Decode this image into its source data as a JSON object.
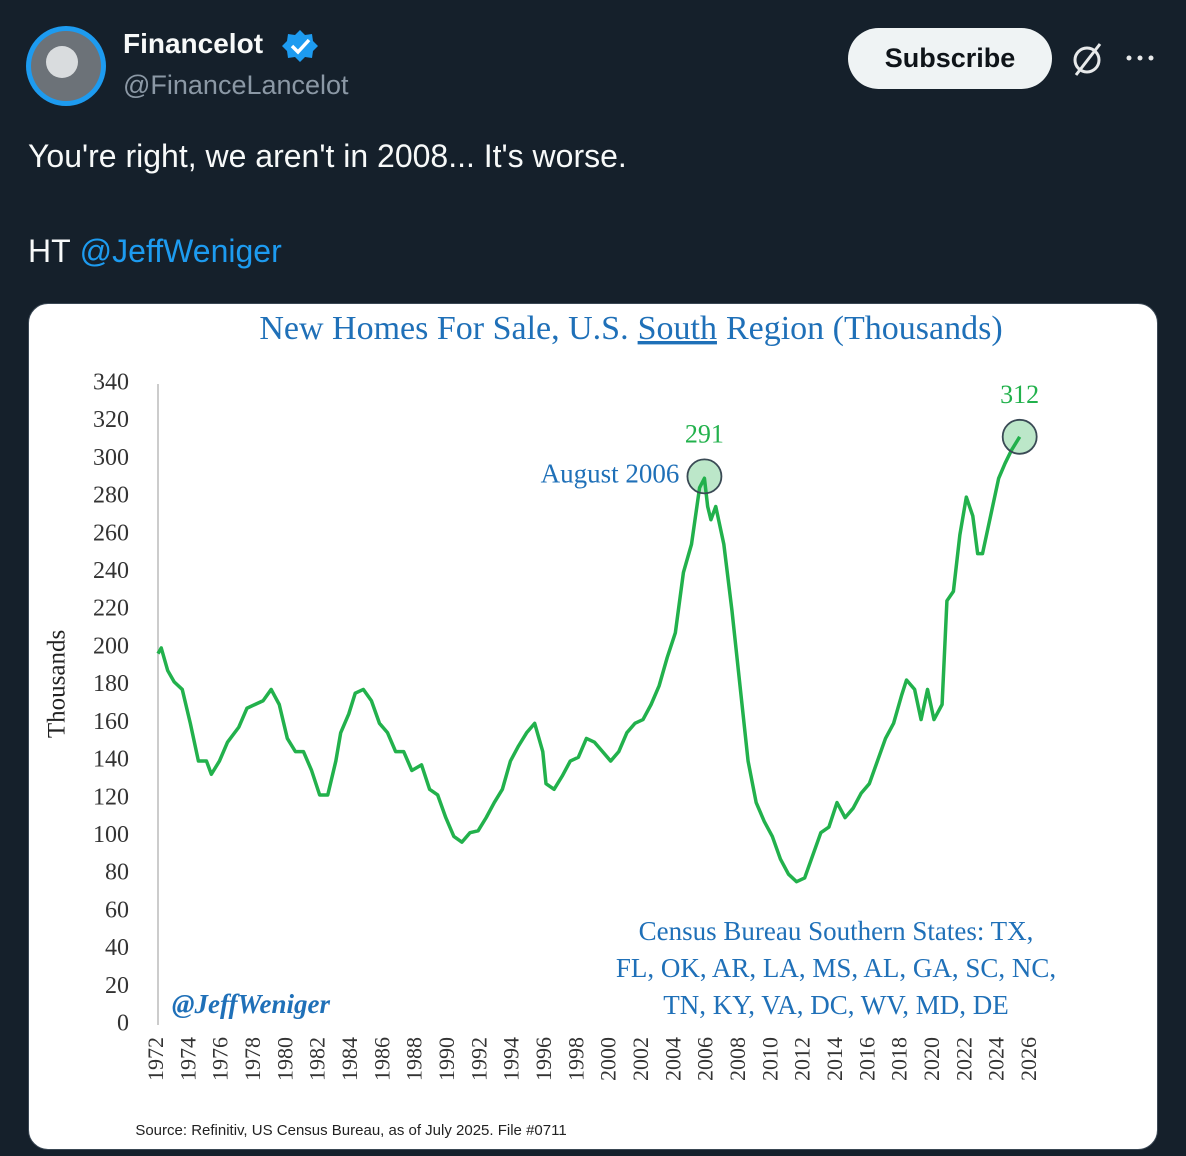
{
  "tweet": {
    "name": "Financelot",
    "handle": "@FinanceLancelot",
    "button": "Subscribe",
    "text": "You're right, we aren't in 2008... It's worse.",
    "ht": "HT",
    "mention": "@JeffWeniger"
  },
  "chart_data": {
    "type": "line",
    "title": [
      "New Homes For Sale, U.S.",
      "South",
      "Region (Thousands)"
    ],
    "ylabel": "Thousands",
    "color": "#22b14c",
    "x": [
      1972.0,
      1972.2,
      1972.6,
      1973.0,
      1973.5,
      1974.0,
      1974.5,
      1975.0,
      1975.3,
      1975.8,
      1976.3,
      1977.0,
      1977.5,
      1978.0,
      1978.5,
      1979.0,
      1979.5,
      1980.0,
      1980.5,
      1981.0,
      1981.5,
      1982.0,
      1982.5,
      1983.0,
      1983.3,
      1983.8,
      1984.2,
      1984.7,
      1985.2,
      1985.7,
      1986.2,
      1986.7,
      1987.2,
      1987.7,
      1988.3,
      1988.8,
      1989.3,
      1989.8,
      1990.3,
      1990.8,
      1991.3,
      1991.8,
      1992.3,
      1992.8,
      1993.3,
      1993.8,
      1994.3,
      1994.8,
      1995.3,
      1995.8,
      1996.0,
      1996.5,
      1997.0,
      1997.5,
      1998.0,
      1998.5,
      1999.0,
      1999.5,
      2000.0,
      2000.5,
      2001.0,
      2001.5,
      2002.0,
      2002.5,
      2003.0,
      2003.5,
      2004.0,
      2004.5,
      2005.0,
      2005.5,
      2005.8,
      2006.0,
      2006.2,
      2006.5,
      2007.0,
      2007.5,
      2008.0,
      2008.5,
      2009.0,
      2009.5,
      2010.0,
      2010.5,
      2011.0,
      2011.5,
      2012.0,
      2012.5,
      2013.0,
      2013.5,
      2014.0,
      2014.5,
      2015.0,
      2015.5,
      2016.0,
      2016.5,
      2017.0,
      2017.5,
      2018.0,
      2018.3,
      2018.8,
      2019.2,
      2019.6,
      2020.0,
      2020.5,
      2020.8,
      2021.2,
      2021.6,
      2022.0,
      2022.4,
      2022.7,
      2023.0,
      2023.5,
      2024.0,
      2024.4,
      2024.8,
      2025.3
    ],
    "values": [
      197,
      200,
      188,
      182,
      178,
      160,
      140,
      140,
      133,
      140,
      150,
      158,
      168,
      170,
      172,
      178,
      170,
      152,
      145,
      145,
      135,
      122,
      122,
      140,
      155,
      165,
      176,
      178,
      172,
      160,
      155,
      145,
      145,
      135,
      138,
      125,
      122,
      110,
      100,
      97,
      102,
      103,
      110,
      118,
      125,
      140,
      148,
      155,
      160,
      145,
      128,
      125,
      132,
      140,
      142,
      152,
      150,
      145,
      140,
      145,
      155,
      160,
      162,
      170,
      180,
      195,
      208,
      240,
      255,
      285,
      290,
      275,
      268,
      275,
      255,
      220,
      180,
      140,
      118,
      108,
      100,
      88,
      80,
      76,
      78,
      90,
      102,
      105,
      118,
      110,
      115,
      123,
      128,
      140,
      152,
      160,
      175,
      183,
      178,
      162,
      178,
      162,
      170,
      225,
      230,
      260,
      280,
      270,
      250,
      250,
      270,
      290,
      298,
      305,
      312
    ],
    "xlim": [
      1972,
      2026
    ],
    "xticks": [
      1972,
      1974,
      1976,
      1978,
      1980,
      1982,
      1984,
      1986,
      1988,
      1990,
      1992,
      1994,
      1996,
      1998,
      2000,
      2002,
      2004,
      2006,
      2008,
      2010,
      2012,
      2014,
      2016,
      2018,
      2020,
      2022,
      2024,
      2026
    ],
    "ylim": [
      0,
      340
    ],
    "yticks": [
      0,
      20,
      40,
      60,
      80,
      100,
      120,
      140,
      160,
      180,
      200,
      220,
      240,
      260,
      280,
      300,
      320,
      340
    ],
    "grid": false,
    "annotations": [
      {
        "value": 291,
        "x": 2005.8,
        "note": "August 2006"
      },
      {
        "value": 312,
        "x": 2025.3
      }
    ],
    "census_note": [
      "Census Bureau Southern States: TX,",
      "FL, OK, AR, LA, MS, AL, GA, SC, NC,",
      "TN, KY, VA, DC, WV, MD, DE"
    ],
    "watermark": "@JeffWeniger",
    "source": "Source: Refinitiv, US Census Bureau, as of July 2025. File #0711"
  }
}
